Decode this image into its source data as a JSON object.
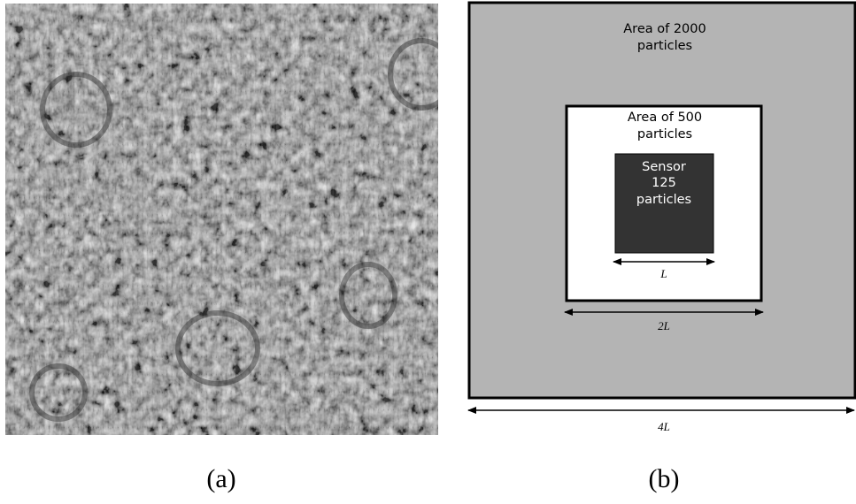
{
  "panel_a": {
    "caption": "(a)"
  },
  "panel_b": {
    "caption": "(b)",
    "outer_label_line1": "Area of 2000",
    "outer_label_line2": "particles",
    "middle_label_line1": "Area of 500",
    "middle_label_line2": "particles",
    "sensor_line1": "Sensor",
    "sensor_line2": "125",
    "sensor_line3": "particles",
    "dim_sensor": "L",
    "dim_middle": "2L",
    "dim_outer": "4L",
    "colors": {
      "outer_fill": "#b4b4b4",
      "middle_fill": "#ffffff",
      "sensor_fill": "#333333",
      "stroke": "#000000"
    }
  }
}
